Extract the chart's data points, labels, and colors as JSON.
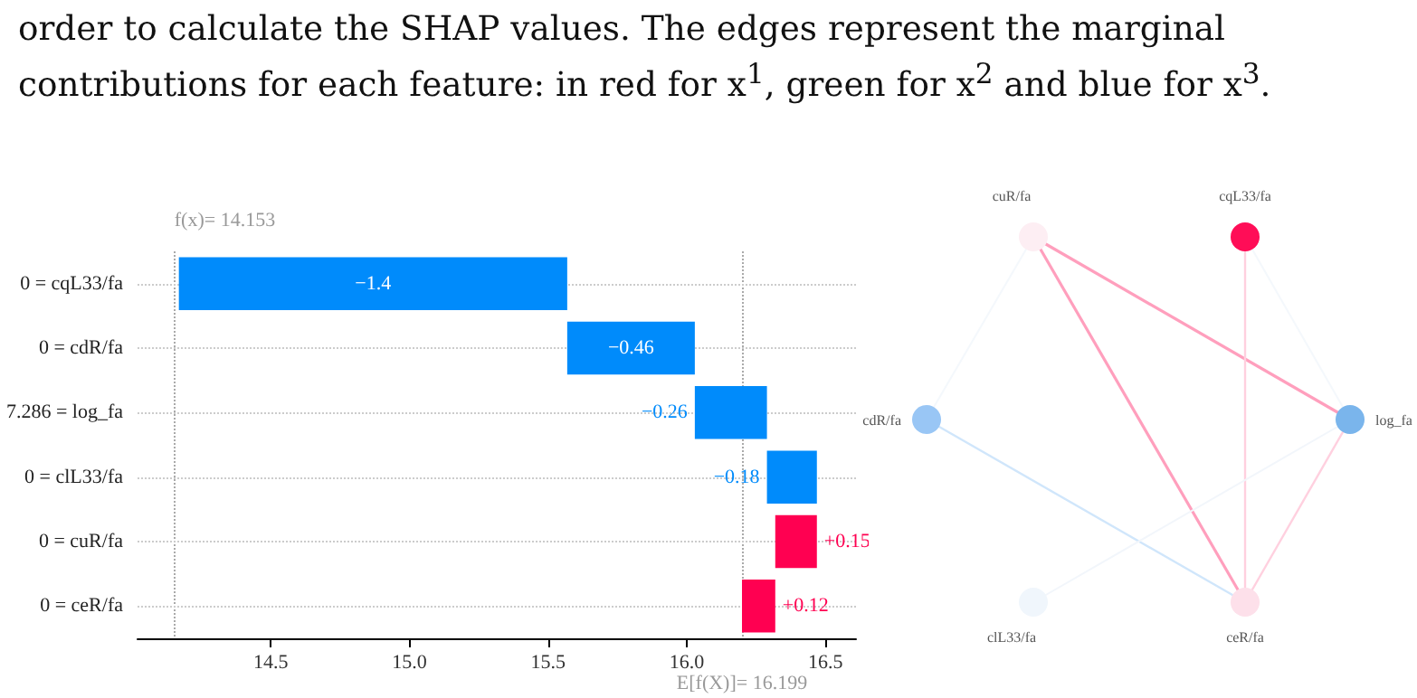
{
  "chart_data": [
    {
      "type": "bar",
      "orientation": "horizontal",
      "categories": [
        "0 = cqL33/fa",
        "0 = cdR/fa",
        "7.286 = log_fa",
        "0 = clL33/fa",
        "0 = cuR/fa",
        "0 = ceR/fa"
      ],
      "values": [
        -1.4,
        -0.46,
        -0.26,
        -0.18,
        0.15,
        0.12
      ],
      "base": [
        15.569,
        16.029,
        16.289,
        16.469,
        16.319,
        16.199
      ],
      "colors": [
        "#008bfb",
        "#008bfb",
        "#008bfb",
        "#008bfb",
        "#ff0051",
        "#ff0051"
      ],
      "value_labels": [
        "−1.4",
        "−0.46",
        "−0.26",
        "−0.18",
        "+0.15",
        "+0.12"
      ],
      "xlim": [
        14.02,
        16.61
      ],
      "xticks": [
        14.5,
        {
          "value": 15,
          "label": "15.0"
        },
        15.5,
        {
          "value": 16,
          "label": "16.0"
        },
        16.5
      ],
      "ref_lines": [
        {
          "axis": "x",
          "value": 14.153,
          "label": "f(x)= 14.153",
          "line_style": "dotted"
        },
        {
          "axis": "x",
          "value": 16.199,
          "label": "E[f(X)]= 16.199",
          "line_style": "dotted"
        }
      ],
      "grid": "y"
    },
    {
      "type": "other",
      "annotations": [
        "order to calculate the SHAP values. The edges represent the marginal contributions for each feature: in red for x$^{1}$, green for x$^{2}$ and blue for x$^{3}$.",
        "cuR/fa",
        "cqL33/fa",
        "cdR/fa",
        "log_fa",
        "clL33/fa",
        "ceR/fa"
      ]
    }
  ]
}
